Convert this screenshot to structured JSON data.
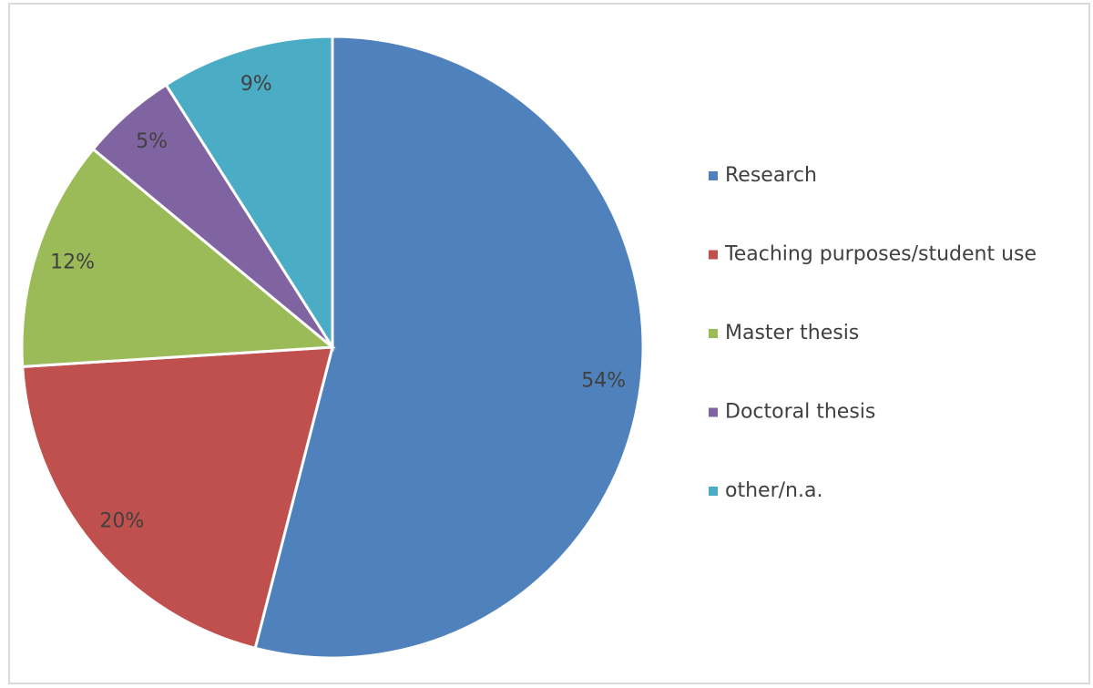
{
  "chart_data": {
    "type": "pie",
    "categories": [
      "Research",
      "Teaching purposes/student use",
      "Master thesis",
      "Doctoral thesis",
      "other/n.a."
    ],
    "values": [
      54,
      20,
      12,
      5,
      9
    ],
    "value_labels": [
      "54%",
      "20%",
      "12%",
      "5%",
      "9%"
    ],
    "colors": [
      "#4f81bd",
      "#c0504d",
      "#9bbb59",
      "#8064a2",
      "#4bacc6"
    ],
    "legend": "right"
  }
}
